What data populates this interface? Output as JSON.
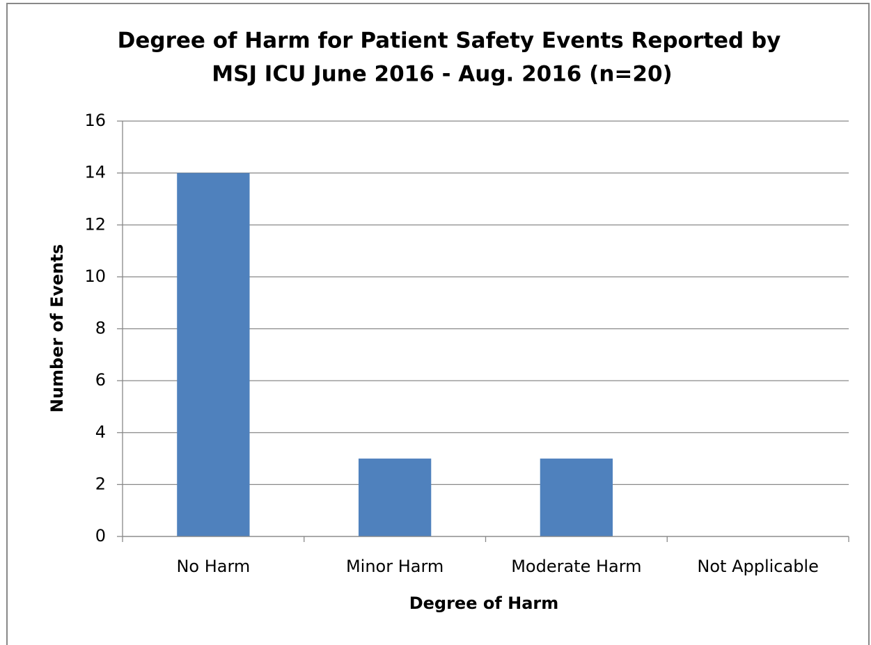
{
  "chart_data": {
    "type": "bar",
    "title": [
      "Degree of Harm for Patient Safety Events Reported by",
      "MSJ ICU June 2016 - Aug. 2016 (n=20)"
    ],
    "x_label": "Degree of Harm",
    "y_label": "Number of Events",
    "categories": [
      "No Harm",
      "Minor Harm",
      "Moderate Harm",
      "Not Applicable"
    ],
    "values": [
      14,
      3,
      3,
      0
    ],
    "color": "#4f81bd",
    "ylim": [
      0,
      16
    ],
    "yticks": [
      0,
      2,
      4,
      6,
      8,
      10,
      12,
      14,
      16
    ],
    "grid": true
  }
}
